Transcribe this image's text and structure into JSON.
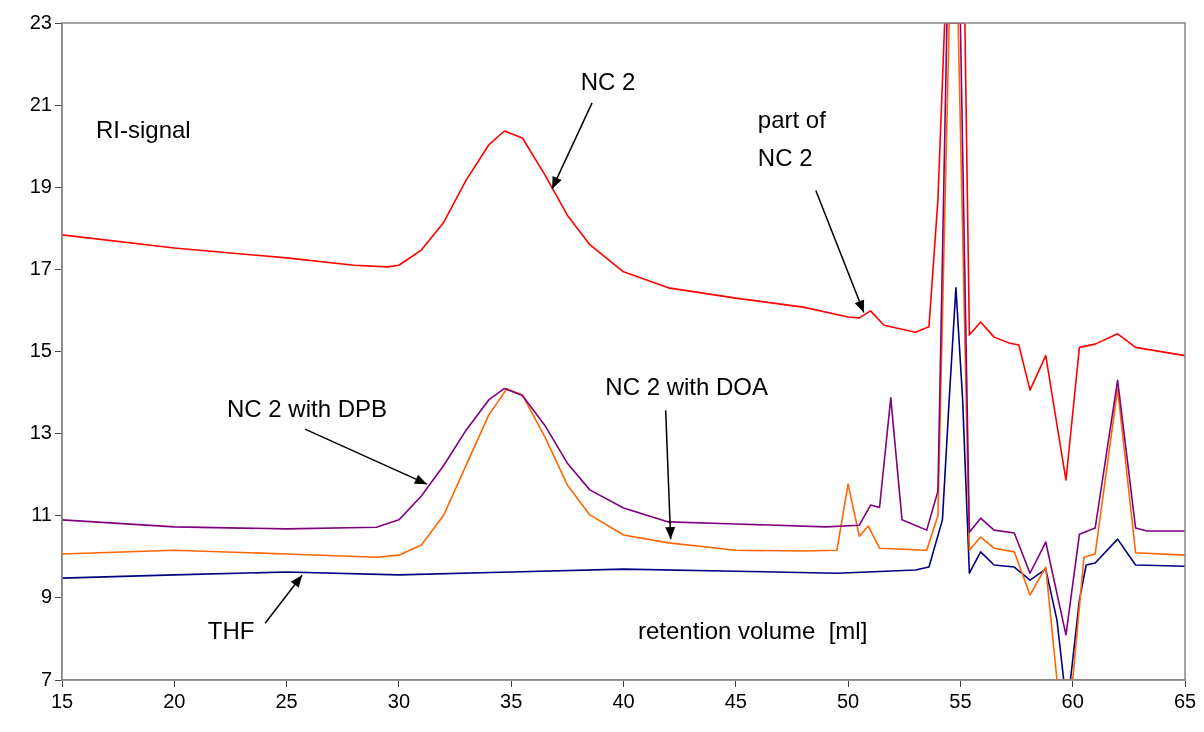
{
  "chart_data": {
    "type": "line",
    "xlabel": "retention volume  [ml]",
    "xlim": [
      15,
      65
    ],
    "xticks": [
      15,
      20,
      25,
      30,
      35,
      40,
      45,
      50,
      55,
      60,
      65
    ],
    "ylim": [
      7,
      23
    ],
    "yticks": [
      7,
      9,
      11,
      13,
      15,
      17,
      19,
      21,
      23
    ],
    "marker": "none",
    "line_style": "solid",
    "legend": false,
    "grid": false,
    "annotations": [
      "RI-signal",
      {
        "text": "NC 2",
        "x": 36.82,
        "y": 18.96
      },
      {
        "text": "part of\nNC 2",
        "x": 50.7,
        "y": 15.95
      },
      {
        "text": "NC 2 with DPB",
        "x": 31.25,
        "y": 11.77
      },
      {
        "text": "NC 2 with DOA",
        "x": 42.1,
        "y": 10.43
      },
      {
        "text": "THF",
        "x": 25.69,
        "y": 9.55
      }
    ],
    "series": [
      {
        "color": "#ff0000",
        "x": [
          15,
          20,
          25,
          28,
          29.5,
          30,
          31,
          32,
          33,
          34,
          34.7,
          35.5,
          36.5,
          37.5,
          38.5,
          40,
          42,
          45,
          48,
          50,
          50.5,
          51,
          51.6,
          53,
          53.6,
          54,
          54.3,
          55.2,
          55.4,
          55.9,
          56.5,
          57.2,
          57.6,
          58.1,
          58.8,
          59.7,
          60.3,
          61,
          62,
          62.8,
          65
        ],
        "values": [
          17.84,
          17.52,
          17.28,
          17.1,
          17.06,
          17.1,
          17.47,
          18.15,
          19.18,
          20.03,
          20.37,
          20.2,
          19.3,
          18.32,
          17.6,
          16.94,
          16.55,
          16.3,
          16.08,
          15.84,
          15.82,
          15.99,
          15.64,
          15.47,
          15.6,
          18.7,
          23,
          23,
          15.4,
          15.72,
          15.35,
          15.2,
          15.16,
          14.06,
          14.9,
          11.87,
          15.1,
          15.18,
          15.43,
          15.1,
          14.9
        ]
      },
      {
        "color": "#800080",
        "x": [
          15,
          20,
          25,
          29,
          30,
          31,
          32,
          33,
          34,
          34.7,
          35.5,
          36.5,
          37.5,
          38.5,
          40,
          42,
          45,
          49,
          50.5,
          51,
          51.4,
          51.9,
          52.4,
          53.5,
          54,
          54.4,
          55,
          55.4,
          55.9,
          56.5,
          57.4,
          58.1,
          58.8,
          59.7,
          60.3,
          61,
          62,
          62.8,
          63.3,
          65
        ],
        "values": [
          10.9,
          10.73,
          10.68,
          10.72,
          10.9,
          11.48,
          12.23,
          13.09,
          13.82,
          14.1,
          13.93,
          13.2,
          12.28,
          11.63,
          11.19,
          10.85,
          10.8,
          10.73,
          10.77,
          11.26,
          11.2,
          13.87,
          10.9,
          10.65,
          11.6,
          23,
          23,
          10.6,
          10.94,
          10.65,
          10.58,
          9.6,
          10.36,
          8.1,
          10.55,
          10.7,
          14.3,
          10.7,
          10.63,
          10.63
        ]
      },
      {
        "color": "#ff6600",
        "x": [
          15,
          20,
          25,
          29,
          30,
          31,
          32,
          33,
          34,
          34.8,
          35.5,
          36.5,
          37.5,
          38.5,
          40,
          42,
          45,
          48,
          49.5,
          50,
          50.5,
          50.9,
          51.4,
          53.5,
          54,
          54.5,
          54.9,
          55.4,
          55.9,
          56.5,
          57.4,
          58.1,
          58.8,
          59.3,
          60,
          60.5,
          61,
          62,
          62.8,
          65
        ],
        "values": [
          10.07,
          10.16,
          10.07,
          9.99,
          10.04,
          10.29,
          11.02,
          12.24,
          13.45,
          14.09,
          13.94,
          12.92,
          11.75,
          11.02,
          10.53,
          10.34,
          10.16,
          10.14,
          10.16,
          11.77,
          10.5,
          10.75,
          10.21,
          10.16,
          11,
          23,
          23,
          10.16,
          10.48,
          10.21,
          10.12,
          9.07,
          9.75,
          7,
          7,
          9.99,
          10.07,
          14.09,
          10.1,
          10.04
        ]
      },
      {
        "color": "#000080",
        "x": [
          15,
          20,
          25,
          30,
          35,
          40,
          45,
          49.5,
          53,
          53.6,
          54.2,
          54.5,
          54.8,
          55.1,
          55.4,
          55.9,
          56.5,
          57.4,
          58.1,
          58.8,
          59.3,
          59.6,
          59.9,
          60.3,
          60.6,
          61,
          62,
          62.8,
          65
        ],
        "values": [
          9.48,
          9.56,
          9.63,
          9.56,
          9.63,
          9.7,
          9.65,
          9.6,
          9.68,
          9.75,
          10.9,
          13.82,
          16.55,
          13.82,
          9.6,
          10.12,
          9.8,
          9.75,
          9.43,
          9.7,
          8.46,
          7,
          7,
          8.95,
          9.8,
          9.85,
          10.43,
          9.8,
          9.77
        ]
      }
    ]
  }
}
